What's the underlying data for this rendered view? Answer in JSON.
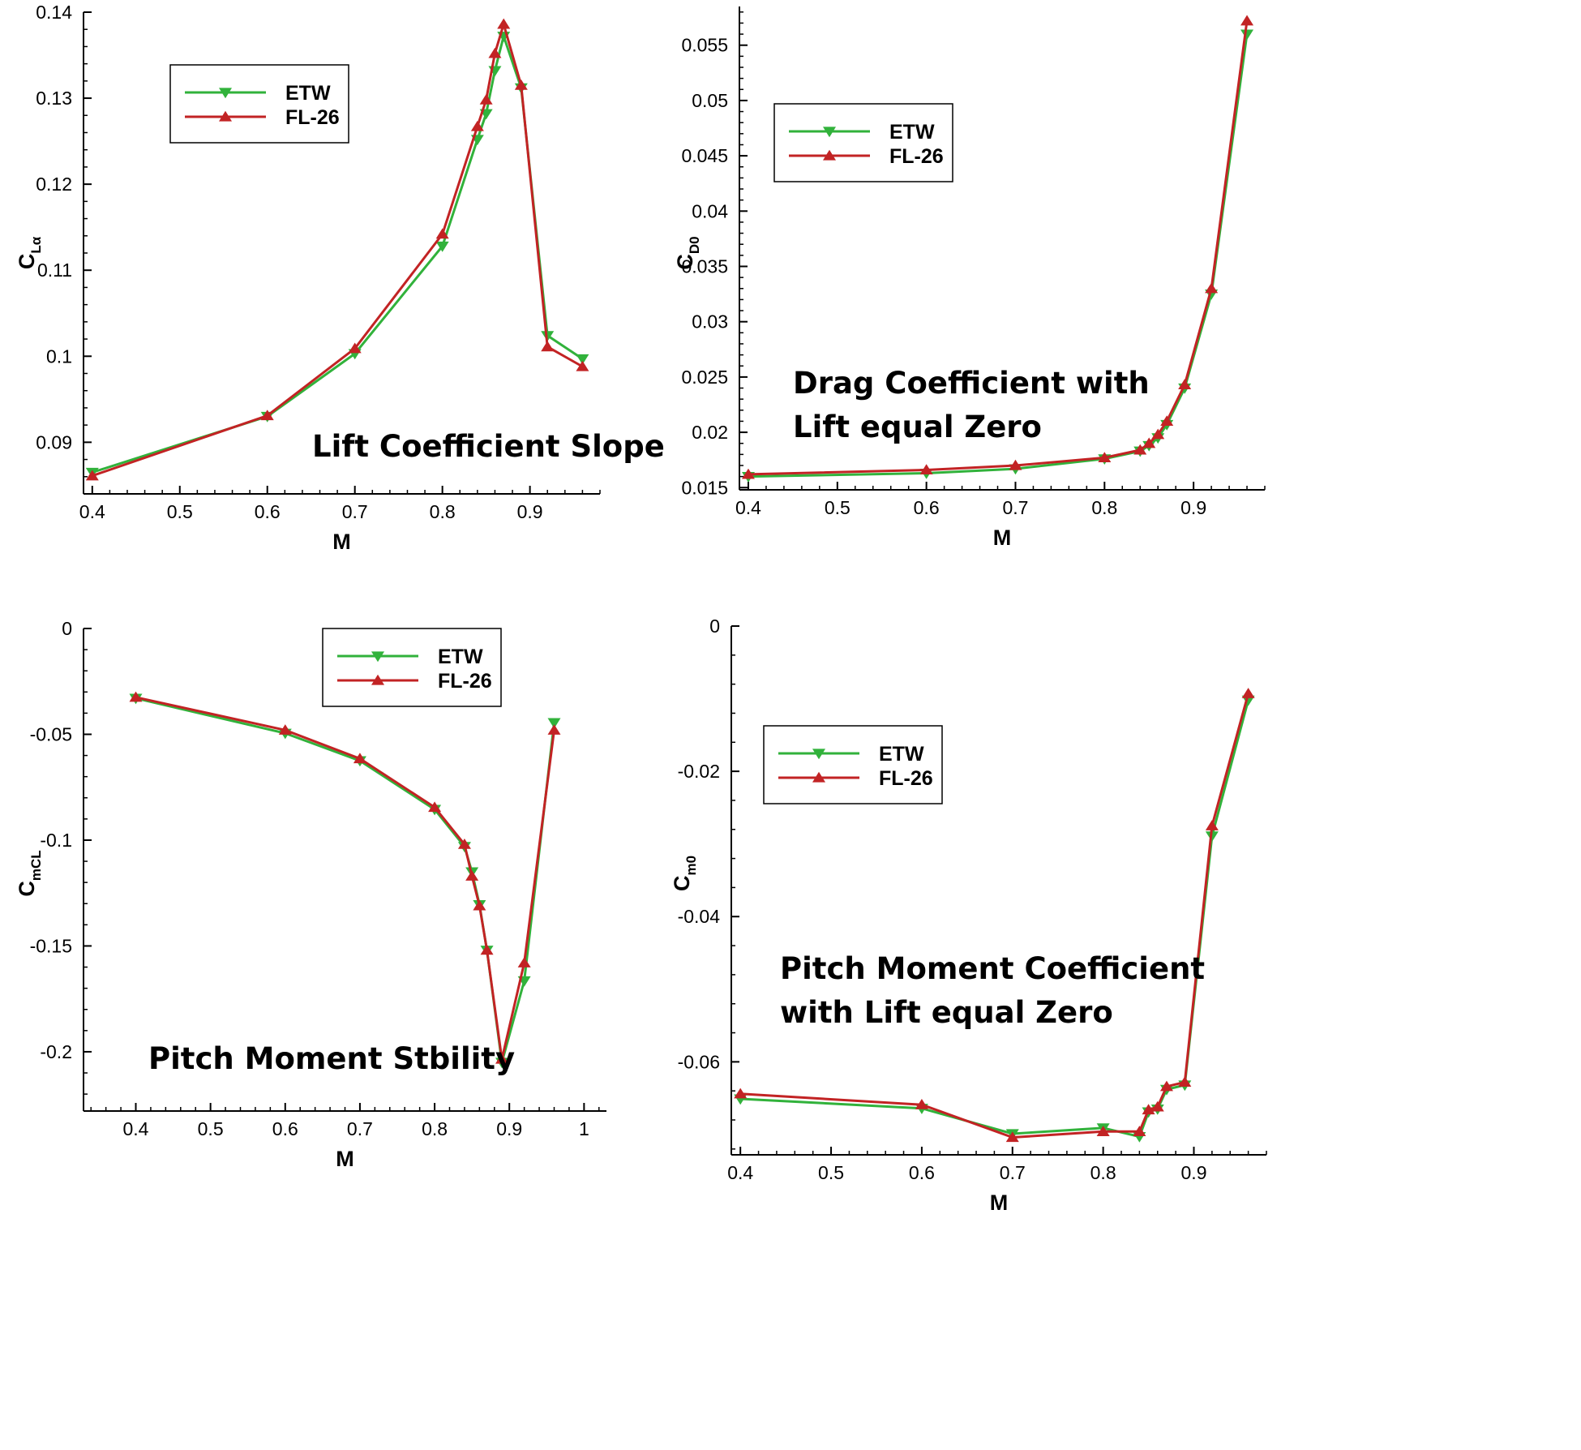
{
  "colors": {
    "etw": "#31b23b",
    "fl26": "#c22324",
    "axis": "#000000"
  },
  "chart_data": [
    {
      "type": "line",
      "title": "Lift Coefficient Slope",
      "xlabel": "M",
      "ylabel_main": "C",
      "ylabel_sub": "Lα",
      "xlim": [
        0.39,
        0.98
      ],
      "ylim": [
        0.084,
        0.14
      ],
      "xticks": [
        0.4,
        0.5,
        0.6,
        0.7,
        0.8,
        0.9
      ],
      "xtick_labels": [
        "0.4",
        "0.5",
        "0.6",
        "0.7",
        "0.8",
        "0.9"
      ],
      "yticks": [
        0.09,
        0.1,
        0.11,
        0.12,
        0.13,
        0.14
      ],
      "ytick_labels": [
        "0.09",
        "0.1",
        "0.11",
        "0.12",
        "0.13",
        "0.14"
      ],
      "legend": [
        "ETW",
        "FL-26"
      ],
      "legend_position": "top-left",
      "series": [
        {
          "name": "ETW",
          "marker": "triangle-down",
          "x": [
            0.4,
            0.6,
            0.7,
            0.8,
            0.84,
            0.85,
            0.86,
            0.87,
            0.89,
            0.92,
            0.96
          ],
          "y": [
            0.0865,
            0.093,
            0.1003,
            0.1128,
            0.1252,
            0.1282,
            0.1332,
            0.1372,
            0.1312,
            0.1024,
            0.0997
          ]
        },
        {
          "name": "FL-26",
          "marker": "triangle-up",
          "x": [
            0.4,
            0.6,
            0.7,
            0.8,
            0.84,
            0.85,
            0.86,
            0.87,
            0.89,
            0.92,
            0.96
          ],
          "y": [
            0.0861,
            0.0931,
            0.1009,
            0.1142,
            0.1267,
            0.1298,
            0.1352,
            0.1386,
            0.1315,
            0.1011,
            0.0988
          ]
        }
      ]
    },
    {
      "type": "line",
      "title": "Drag Coefficient with Lift equal Zero",
      "title_lines": [
        "Drag Coefficient with",
        "Lift equal Zero"
      ],
      "xlabel": "M",
      "ylabel_main": "C",
      "ylabel_sub": "D0",
      "xlim": [
        0.39,
        0.98
      ],
      "ylim": [
        0.0148,
        0.0585
      ],
      "xticks": [
        0.4,
        0.5,
        0.6,
        0.7,
        0.8,
        0.9
      ],
      "xtick_labels": [
        "0.4",
        "0.5",
        "0.6",
        "0.7",
        "0.8",
        "0.9"
      ],
      "yticks": [
        0.015,
        0.02,
        0.025,
        0.03,
        0.035,
        0.04,
        0.045,
        0.05,
        0.055
      ],
      "ytick_labels": [
        "0.015",
        "0.02",
        "0.025",
        "0.03",
        "0.035",
        "0.04",
        "0.045",
        "0.05",
        "0.055"
      ],
      "legend": [
        "ETW",
        "FL-26"
      ],
      "legend_position": "top-left",
      "series": [
        {
          "name": "ETW",
          "marker": "triangle-down",
          "x": [
            0.4,
            0.6,
            0.7,
            0.8,
            0.84,
            0.85,
            0.86,
            0.87,
            0.89,
            0.92,
            0.96
          ],
          "y": [
            0.016,
            0.0163,
            0.0167,
            0.0176,
            0.0183,
            0.0188,
            0.0195,
            0.0207,
            0.024,
            0.0325,
            0.056
          ]
        },
        {
          "name": "FL-26",
          "marker": "triangle-up",
          "x": [
            0.4,
            0.6,
            0.7,
            0.8,
            0.84,
            0.85,
            0.86,
            0.87,
            0.89,
            0.92,
            0.96
          ],
          "y": [
            0.0162,
            0.0166,
            0.017,
            0.0177,
            0.0184,
            0.019,
            0.0198,
            0.021,
            0.0243,
            0.033,
            0.0572
          ]
        }
      ]
    },
    {
      "type": "line",
      "title": "Pitch Moment Stbility",
      "xlabel": "M",
      "ylabel_main": "C",
      "ylabel_sub": "mCL",
      "xlim": [
        0.33,
        1.03
      ],
      "ylim": [
        -0.228,
        0
      ],
      "xticks": [
        0.4,
        0.5,
        0.6,
        0.7,
        0.8,
        0.9,
        1.0
      ],
      "xtick_labels": [
        "0.4",
        "0.5",
        "0.6",
        "0.7",
        "0.8",
        "0.9",
        "1"
      ],
      "yticks": [
        0,
        -0.05,
        -0.1,
        -0.15,
        -0.2
      ],
      "ytick_labels": [
        "0",
        "-0.05",
        "-0.1",
        "-0.15",
        "-0.2"
      ],
      "legend": [
        "ETW",
        "FL-26"
      ],
      "legend_position": "top-right",
      "series": [
        {
          "name": "ETW",
          "marker": "triangle-down",
          "x": [
            0.4,
            0.6,
            0.7,
            0.8,
            0.84,
            0.85,
            0.86,
            0.87,
            0.89,
            0.92,
            0.96
          ],
          "y": [
            -0.033,
            -0.0495,
            -0.0625,
            -0.0855,
            -0.103,
            -0.115,
            -0.1305,
            -0.152,
            -0.205,
            -0.1665,
            -0.0445
          ]
        },
        {
          "name": "FL-26",
          "marker": "triangle-up",
          "x": [
            0.4,
            0.6,
            0.7,
            0.8,
            0.84,
            0.85,
            0.86,
            0.87,
            0.89,
            0.92,
            0.96
          ],
          "y": [
            -0.0325,
            -0.048,
            -0.0615,
            -0.0845,
            -0.102,
            -0.117,
            -0.131,
            -0.152,
            -0.2035,
            -0.158,
            -0.048
          ]
        }
      ]
    },
    {
      "type": "line",
      "title": "Pitch Moment Coefficient with Lift equal Zero",
      "title_lines": [
        "Pitch Moment Coefficient",
        "with Lift equal Zero"
      ],
      "xlabel": "M",
      "ylabel_main": "C",
      "ylabel_sub": "m0",
      "xlim": [
        0.39,
        0.98
      ],
      "ylim": [
        -0.0728,
        0
      ],
      "xticks": [
        0.4,
        0.5,
        0.6,
        0.7,
        0.8,
        0.9
      ],
      "xtick_labels": [
        "0.4",
        "0.5",
        "0.6",
        "0.7",
        "0.8",
        "0.9"
      ],
      "yticks": [
        0,
        -0.02,
        -0.04,
        -0.06
      ],
      "ytick_labels": [
        "0",
        "-0.02",
        "-0.04",
        "-0.06"
      ],
      "legend": [
        "ETW",
        "FL-26"
      ],
      "legend_position": "top-left",
      "series": [
        {
          "name": "ETW",
          "marker": "triangle-down",
          "x": [
            0.4,
            0.6,
            0.7,
            0.8,
            0.84,
            0.85,
            0.86,
            0.87,
            0.89,
            0.92,
            0.96
          ],
          "y": [
            -0.0651,
            -0.0664,
            -0.0699,
            -0.0691,
            -0.0703,
            -0.0669,
            -0.0665,
            -0.0638,
            -0.0632,
            -0.0289,
            -0.0102
          ]
        },
        {
          "name": "FL-26",
          "marker": "triangle-up",
          "x": [
            0.4,
            0.6,
            0.7,
            0.8,
            0.84,
            0.85,
            0.86,
            0.87,
            0.89,
            0.92,
            0.96
          ],
          "y": [
            -0.0644,
            -0.0659,
            -0.0704,
            -0.0696,
            -0.0696,
            -0.0666,
            -0.0662,
            -0.0634,
            -0.0628,
            -0.0275,
            -0.0093
          ]
        }
      ]
    }
  ]
}
